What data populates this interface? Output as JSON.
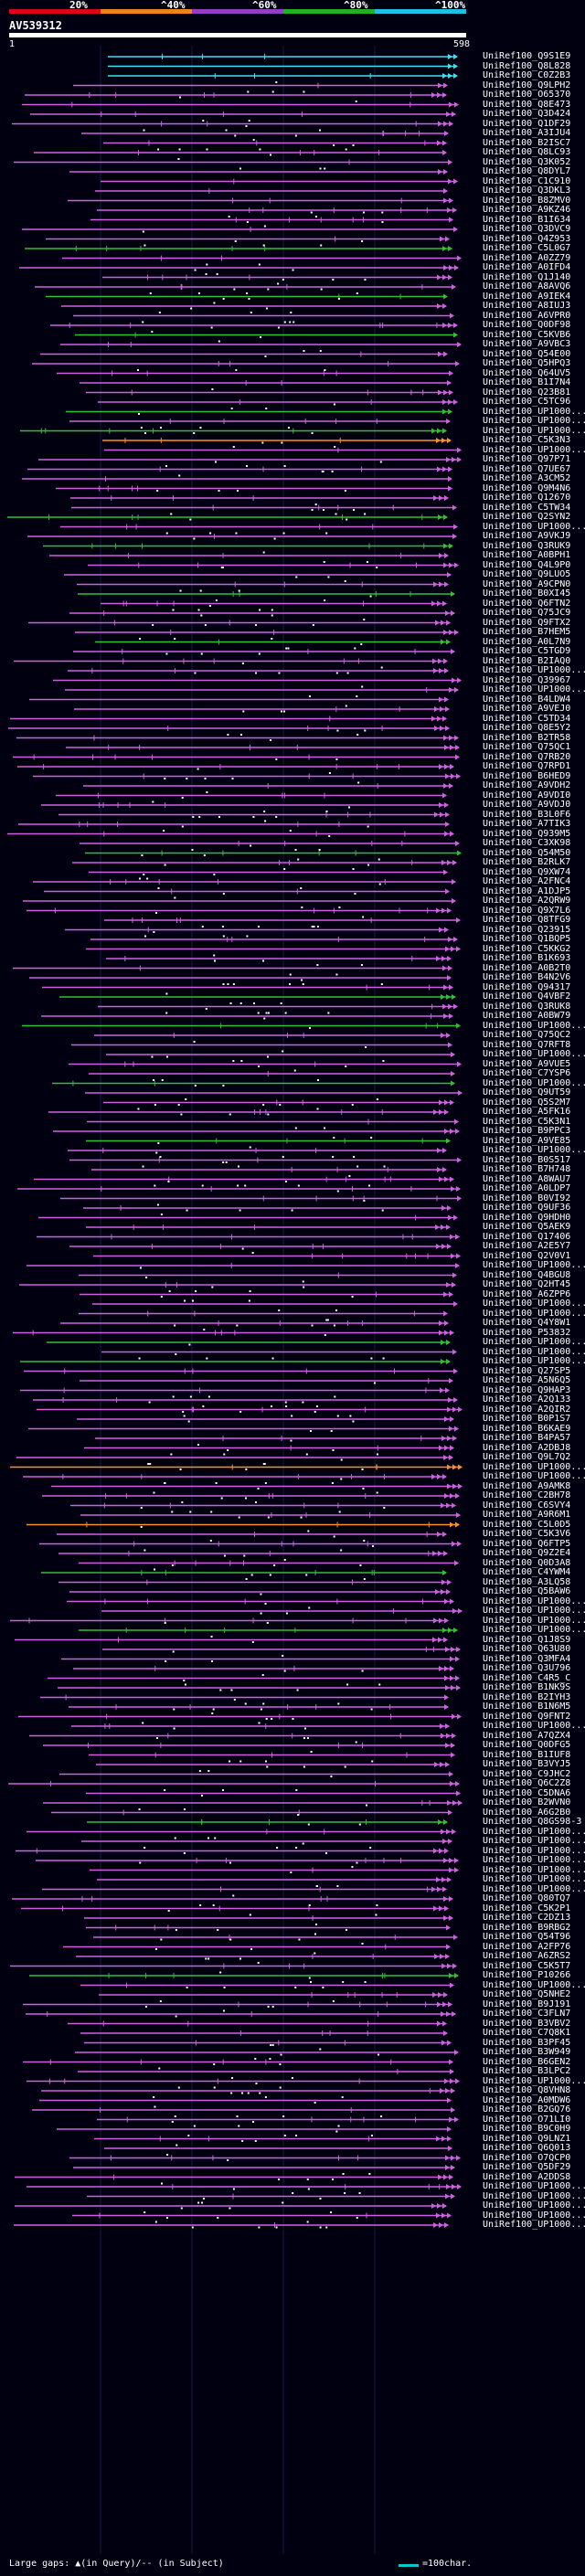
{
  "header": {
    "identity_scale": [
      {
        "label": "20%",
        "color": "#e0001c"
      },
      {
        "label": "^40%",
        "color": "#f08020"
      },
      {
        "label": "^60%",
        "color": "#9040c0"
      },
      {
        "label": "^80%",
        "color": "#20b020"
      },
      {
        "label": "^100%",
        "color": "#20c0e0"
      }
    ],
    "query_name": "AV539312",
    "query_start": "1",
    "query_end": "598"
  },
  "colors": {
    "background": "#000010",
    "cyan": "#40e0f0",
    "orange": "#ff9020",
    "magenta": "#d060e0",
    "green": "#30c030",
    "white": "#ffffff"
  },
  "hits": [
    {
      "name": "UniRef100_Q9S1E9",
      "color": "cyan"
    },
    {
      "name": "UniRef100_Q8L828",
      "color": "cyan"
    },
    {
      "name": "UniRef100_C0Z2B3",
      "color": "cyan"
    },
    {
      "name": "UniRef100_Q9LPH2",
      "color": "magenta"
    },
    {
      "name": "UniRef100_O65370",
      "color": "magenta"
    },
    {
      "name": "UniRef100_Q8E473",
      "color": "magenta"
    },
    {
      "name": "UniRef100_Q3D424",
      "color": "magenta"
    },
    {
      "name": "UniRef100_Q1DF29",
      "color": "magenta"
    },
    {
      "name": "UniRef100_A3IJU4",
      "color": "magenta"
    },
    {
      "name": "UniRef100_B2ISC7",
      "color": "magenta"
    },
    {
      "name": "UniRef100_Q8LC93",
      "color": "magenta"
    },
    {
      "name": "UniRef100_Q3K052",
      "color": "magenta"
    },
    {
      "name": "UniRef100_Q8DYL7",
      "color": "magenta"
    },
    {
      "name": "UniRef100_C1C910",
      "color": "magenta"
    },
    {
      "name": "UniRef100_Q3DKL3",
      "color": "magenta"
    },
    {
      "name": "UniRef100_B8ZMV0",
      "color": "magenta"
    },
    {
      "name": "UniRef100_A9KZ46",
      "color": "magenta"
    },
    {
      "name": "UniRef100_B1I634",
      "color": "magenta"
    },
    {
      "name": "UniRef100_Q3DVC9",
      "color": "magenta"
    },
    {
      "name": "UniRef100_Q4Z953",
      "color": "magenta"
    },
    {
      "name": "UniRef100_C5L0G7",
      "color": "green"
    },
    {
      "name": "UniRef100_A0ZZ79",
      "color": "magenta"
    },
    {
      "name": "UniRef100_A0IFD4",
      "color": "magenta"
    },
    {
      "name": "UniRef100_Q1J140",
      "color": "magenta"
    },
    {
      "name": "UniRef100_A8AVQ6",
      "color": "magenta"
    },
    {
      "name": "UniRef100_A9IEK4",
      "color": "green"
    },
    {
      "name": "UniRef100_A8IUJ3",
      "color": "magenta"
    },
    {
      "name": "UniRef100_A6VPR0",
      "color": "magenta"
    },
    {
      "name": "UniRef100_Q0DF98",
      "color": "magenta"
    },
    {
      "name": "UniRef100_C5KVB6",
      "color": "green"
    },
    {
      "name": "UniRef100_A9VBC3",
      "color": "magenta"
    },
    {
      "name": "UniRef100_Q54E00",
      "color": "magenta"
    },
    {
      "name": "UniRef100_Q5HPQ3",
      "color": "magenta"
    },
    {
      "name": "UniRef100_Q64UV5",
      "color": "magenta"
    },
    {
      "name": "UniRef100_B1I7N4",
      "color": "magenta"
    },
    {
      "name": "UniRef100_Q23B81",
      "color": "magenta"
    },
    {
      "name": "UniRef100_C5TC96",
      "color": "magenta"
    },
    {
      "name": "UniRef100_UP1000...",
      "color": "green"
    },
    {
      "name": "UniRef100_UP1000...",
      "color": "magenta"
    },
    {
      "name": "UniRef100_UP1000...",
      "color": "green"
    },
    {
      "name": "UniRef100_C5K3N3",
      "color": "orange"
    },
    {
      "name": "UniRef100_UP1000...",
      "color": "magenta"
    },
    {
      "name": "UniRef100_Q97P71",
      "color": "magenta"
    },
    {
      "name": "UniRef100_Q7UE67",
      "color": "magenta"
    },
    {
      "name": "UniRef100_A3CM52",
      "color": "magenta"
    },
    {
      "name": "UniRef100_Q9M4N6",
      "color": "magenta"
    },
    {
      "name": "UniRef100_Q12670",
      "color": "magenta"
    },
    {
      "name": "UniRef100_C5TW34",
      "color": "magenta"
    },
    {
      "name": "UniRef100_Q2SYN2",
      "color": "green"
    },
    {
      "name": "UniRef100_UP1000...",
      "color": "magenta"
    },
    {
      "name": "UniRef100_A9VKJ9",
      "color": "magenta"
    },
    {
      "name": "UniRef100_Q3RUK9",
      "color": "green"
    },
    {
      "name": "UniRef100_A0BPH1",
      "color": "magenta"
    },
    {
      "name": "UniRef100_Q4L9P0",
      "color": "magenta"
    },
    {
      "name": "UniRef100_Q9LUO5",
      "color": "magenta"
    },
    {
      "name": "UniRef100_A9CPN0",
      "color": "magenta"
    },
    {
      "name": "UniRef100_B0XI45",
      "color": "green"
    },
    {
      "name": "UniRef100_Q6FTN2",
      "color": "magenta"
    },
    {
      "name": "UniRef100_Q75JC9",
      "color": "magenta"
    },
    {
      "name": "UniRef100_Q9FTX2",
      "color": "magenta"
    },
    {
      "name": "UniRef100_B7HEM5",
      "color": "magenta"
    },
    {
      "name": "UniRef100_A0L7N9",
      "color": "green"
    },
    {
      "name": "UniRef100_C5TGD9",
      "color": "magenta"
    },
    {
      "name": "UniRef100_B2IAQ0",
      "color": "magenta"
    },
    {
      "name": "UniRef100_UP1000...",
      "color": "magenta"
    },
    {
      "name": "UniRef100_Q39967",
      "color": "magenta"
    },
    {
      "name": "UniRef100_UP1000...",
      "color": "magenta"
    },
    {
      "name": "UniRef100_B4LDW4",
      "color": "magenta"
    },
    {
      "name": "UniRef100_A9VEJ0",
      "color": "magenta"
    },
    {
      "name": "UniRef100_C5TD34",
      "color": "magenta"
    },
    {
      "name": "UniRef100_Q8E5Y2",
      "color": "magenta"
    },
    {
      "name": "UniRef100_B2TR58",
      "color": "magenta"
    },
    {
      "name": "UniRef100_Q75QC1",
      "color": "magenta"
    },
    {
      "name": "UniRef100_Q7RB20",
      "color": "magenta"
    },
    {
      "name": "UniRef100_Q7RPD1",
      "color": "magenta"
    },
    {
      "name": "UniRef100_B6HED9",
      "color": "magenta"
    },
    {
      "name": "UniRef100_A9VDH2",
      "color": "magenta"
    },
    {
      "name": "UniRef100_A9VDI0",
      "color": "magenta"
    },
    {
      "name": "UniRef100_A9VDJ0",
      "color": "magenta"
    },
    {
      "name": "UniRef100_B3L0F6",
      "color": "magenta"
    },
    {
      "name": "UniRef100_A7TIK3",
      "color": "magenta"
    },
    {
      "name": "UniRef100_Q939M5",
      "color": "magenta"
    },
    {
      "name": "UniRef100_C3XK98",
      "color": "magenta"
    },
    {
      "name": "UniRef100_Q54M50",
      "color": "green"
    },
    {
      "name": "UniRef100_B2RLK7",
      "color": "magenta"
    },
    {
      "name": "UniRef100_Q9XW74",
      "color": "magenta"
    },
    {
      "name": "UniRef100_A2FNC4",
      "color": "magenta"
    },
    {
      "name": "UniRef100_A1DJP5",
      "color": "magenta"
    },
    {
      "name": "UniRef100_A2QRW9",
      "color": "magenta"
    },
    {
      "name": "UniRef100_Q9X7L6",
      "color": "magenta"
    },
    {
      "name": "UniRef100_Q8TFG9",
      "color": "magenta"
    },
    {
      "name": "UniRef100_Q23915",
      "color": "magenta"
    },
    {
      "name": "UniRef100_Q1BQP5",
      "color": "magenta"
    },
    {
      "name": "UniRef100_C5KKG2",
      "color": "magenta"
    },
    {
      "name": "UniRef100_B1K693",
      "color": "magenta"
    },
    {
      "name": "UniRef100_A0B2T0",
      "color": "magenta"
    },
    {
      "name": "UniRef100_B4N2V6",
      "color": "magenta"
    },
    {
      "name": "UniRef100_Q94317",
      "color": "magenta"
    },
    {
      "name": "UniRef100_Q4VBF2",
      "color": "green"
    },
    {
      "name": "UniRef100_Q3RUK8",
      "color": "magenta"
    },
    {
      "name": "UniRef100_A0BW79",
      "color": "magenta"
    },
    {
      "name": "UniRef100_UP1000...",
      "color": "green"
    },
    {
      "name": "UniRef100_Q75QC2",
      "color": "magenta"
    },
    {
      "name": "UniRef100_Q7RFT8",
      "color": "magenta"
    },
    {
      "name": "UniRef100_UP1000...",
      "color": "magenta"
    },
    {
      "name": "UniRef100_A9VUE5",
      "color": "magenta"
    },
    {
      "name": "UniRef100_C7YSP6",
      "color": "magenta"
    },
    {
      "name": "UniRef100_UP1000...",
      "color": "green"
    },
    {
      "name": "UniRef100_Q9UT59",
      "color": "magenta"
    },
    {
      "name": "UniRef100_Q5S2M7",
      "color": "magenta"
    },
    {
      "name": "UniRef100_A5FK16",
      "color": "magenta"
    },
    {
      "name": "UniRef100_C5K3N1",
      "color": "magenta"
    },
    {
      "name": "UniRef100_B9PPC3",
      "color": "magenta"
    },
    {
      "name": "UniRef100_A9VE85",
      "color": "green"
    },
    {
      "name": "UniRef100_UP1000...",
      "color": "magenta"
    },
    {
      "name": "UniRef100_B0S517",
      "color": "magenta"
    },
    {
      "name": "UniRef100_B7H748",
      "color": "magenta"
    },
    {
      "name": "UniRef100_A8WAU7",
      "color": "magenta"
    },
    {
      "name": "UniRef100_A0LDP7",
      "color": "magenta"
    },
    {
      "name": "UniRef100_B0VI92",
      "color": "magenta"
    },
    {
      "name": "UniRef100_Q9UF36",
      "color": "magenta"
    },
    {
      "name": "UniRef100_Q9HDH0",
      "color": "magenta"
    },
    {
      "name": "UniRef100_Q5AEK9",
      "color": "magenta"
    },
    {
      "name": "UniRef100_Q17406",
      "color": "magenta"
    },
    {
      "name": "UniRef100_A2E5Y7",
      "color": "magenta"
    },
    {
      "name": "UniRef100_Q2V0V1",
      "color": "magenta"
    },
    {
      "name": "UniRef100_UP1000...",
      "color": "magenta"
    },
    {
      "name": "UniRef100_Q4BGU8",
      "color": "magenta"
    },
    {
      "name": "UniRef100_Q2HT45",
      "color": "magenta"
    },
    {
      "name": "UniRef100_A6ZPP6",
      "color": "magenta"
    },
    {
      "name": "UniRef100_UP1000...",
      "color": "magenta"
    },
    {
      "name": "UniRef100_UP1000...",
      "color": "magenta"
    },
    {
      "name": "UniRef100_Q4Y8W1",
      "color": "magenta"
    },
    {
      "name": "UniRef100_P53832",
      "color": "magenta"
    },
    {
      "name": "UniRef100_UP1000...",
      "color": "green"
    },
    {
      "name": "UniRef100_UP1000...",
      "color": "magenta"
    },
    {
      "name": "UniRef100_UP1000...",
      "color": "green"
    },
    {
      "name": "UniRef100_Q27SP5",
      "color": "magenta"
    },
    {
      "name": "UniRef100_A5N6Q5",
      "color": "magenta"
    },
    {
      "name": "UniRef100_Q9HAP3",
      "color": "magenta"
    },
    {
      "name": "UniRef100_A2Q133",
      "color": "magenta"
    },
    {
      "name": "UniRef100_A2QIR2",
      "color": "magenta"
    },
    {
      "name": "UniRef100_B0P1S7",
      "color": "magenta"
    },
    {
      "name": "UniRef100_B6KAE9",
      "color": "magenta"
    },
    {
      "name": "UniRef100_B4PA57",
      "color": "magenta"
    },
    {
      "name": "UniRef100_A2DBJ8",
      "color": "magenta"
    },
    {
      "name": "UniRef100_Q9L7Q2",
      "color": "magenta"
    },
    {
      "name": "UniRef100_UP1000...",
      "color": "orange"
    },
    {
      "name": "UniRef100_UP1000...",
      "color": "magenta"
    },
    {
      "name": "UniRef100_A9AMK8",
      "color": "magenta"
    },
    {
      "name": "UniRef100_C2BH78",
      "color": "magenta"
    },
    {
      "name": "UniRef100_C6SVY4",
      "color": "magenta"
    },
    {
      "name": "UniRef100_A9R6M1",
      "color": "magenta"
    },
    {
      "name": "UniRef100_C5L0D5",
      "color": "orange"
    },
    {
      "name": "UniRef100_C5K3V6",
      "color": "magenta"
    },
    {
      "name": "UniRef100_Q6FTP5",
      "color": "magenta"
    },
    {
      "name": "UniRef100_Q9Z2E4",
      "color": "magenta"
    },
    {
      "name": "UniRef100_Q0D3A8",
      "color": "magenta"
    },
    {
      "name": "UniRef100_C4YWM4",
      "color": "green"
    },
    {
      "name": "UniRef100_A3LQ58",
      "color": "magenta"
    },
    {
      "name": "UniRef100_Q5BAW6",
      "color": "magenta"
    },
    {
      "name": "UniRef100_UP1000...",
      "color": "magenta"
    },
    {
      "name": "UniRef100_UP1000...",
      "color": "magenta"
    },
    {
      "name": "UniRef100_UP1000...",
      "color": "magenta"
    },
    {
      "name": "UniRef100_UP1000...",
      "color": "green"
    },
    {
      "name": "UniRef100_Q1J8S9",
      "color": "magenta"
    },
    {
      "name": "UniRef100_Q63U80",
      "color": "magenta"
    },
    {
      "name": "UniRef100_Q3MFA4",
      "color": "magenta"
    },
    {
      "name": "UniRef100_Q3U796",
      "color": "magenta"
    },
    {
      "name": "UniRef100_C4R5_C",
      "color": "magenta"
    },
    {
      "name": "UniRef100_B1NK9S",
      "color": "magenta"
    },
    {
      "name": "UniRef100_B2IYH3",
      "color": "magenta"
    },
    {
      "name": "UniRef100_B1N6M5",
      "color": "magenta"
    },
    {
      "name": "UniRef100_Q9FNT2",
      "color": "magenta"
    },
    {
      "name": "UniRef100_UP1000...",
      "color": "magenta"
    },
    {
      "name": "UniRef100_A7QZX4",
      "color": "magenta"
    },
    {
      "name": "UniRef100_Q0DFG5",
      "color": "magenta"
    },
    {
      "name": "UniRef100_B1IUF8",
      "color": "magenta"
    },
    {
      "name": "UniRef100_B3VYJ5",
      "color": "magenta"
    },
    {
      "name": "UniRef100_C9JHC2",
      "color": "magenta"
    },
    {
      "name": "UniRef100_Q6C2Z8",
      "color": "magenta"
    },
    {
      "name": "UniRef100_C5DNA6",
      "color": "magenta"
    },
    {
      "name": "UniRef100_B2WVN0",
      "color": "magenta"
    },
    {
      "name": "UniRef100_A6G2B0",
      "color": "magenta"
    },
    {
      "name": "UniRef100_Q8GS98-3",
      "color": "green"
    },
    {
      "name": "UniRef100_UP1000...",
      "color": "magenta"
    },
    {
      "name": "UniRef100_UP1000...",
      "color": "magenta"
    },
    {
      "name": "UniRef100_UP1000...",
      "color": "magenta"
    },
    {
      "name": "UniRef100_UP1000...",
      "color": "magenta"
    },
    {
      "name": "UniRef100_UP1000...",
      "color": "magenta"
    },
    {
      "name": "UniRef100_UP1000...",
      "color": "magenta"
    },
    {
      "name": "UniRef100_UP1000...",
      "color": "magenta"
    },
    {
      "name": "UniRef100_Q80TQ7",
      "color": "magenta"
    },
    {
      "name": "UniRef100_C5K2P1",
      "color": "magenta"
    },
    {
      "name": "UniRef100_C2DZ13",
      "color": "magenta"
    },
    {
      "name": "UniRef100_B9RBG2",
      "color": "magenta"
    },
    {
      "name": "UniRef100_Q54T96",
      "color": "magenta"
    },
    {
      "name": "UniRef100_A2FP76",
      "color": "magenta"
    },
    {
      "name": "UniRef100_A6ZRS2",
      "color": "magenta"
    },
    {
      "name": "UniRef100_C5K5T7",
      "color": "magenta"
    },
    {
      "name": "UniRef100_P10266",
      "color": "green"
    },
    {
      "name": "UniRef100_UP1000...",
      "color": "magenta"
    },
    {
      "name": "UniRef100_Q5NHE2",
      "color": "magenta"
    },
    {
      "name": "UniRef100_B9J191",
      "color": "magenta"
    },
    {
      "name": "UniRef100_C3FLN7",
      "color": "magenta"
    },
    {
      "name": "UniRef100_B3VBV2",
      "color": "magenta"
    },
    {
      "name": "UniRef100_C7Q8K1",
      "color": "magenta"
    },
    {
      "name": "UniRef100_B3PF45",
      "color": "magenta"
    },
    {
      "name": "UniRef100_B3W949",
      "color": "magenta"
    },
    {
      "name": "UniRef100_B6GEN2",
      "color": "magenta"
    },
    {
      "name": "UniRef100_B3LPC2",
      "color": "magenta"
    },
    {
      "name": "UniRef100_UP1000...",
      "color": "magenta"
    },
    {
      "name": "UniRef100_Q8VHN8",
      "color": "magenta"
    },
    {
      "name": "UniRef100_A0MDW6",
      "color": "magenta"
    },
    {
      "name": "UniRef100_B2GQ76",
      "color": "magenta"
    },
    {
      "name": "UniRef100_O71LI0",
      "color": "magenta"
    },
    {
      "name": "UniRef100_B9C0H9",
      "color": "magenta"
    },
    {
      "name": "UniRef100_Q9LNZ1",
      "color": "magenta"
    },
    {
      "name": "UniRef100_Q6Q013",
      "color": "magenta"
    },
    {
      "name": "UniRef100_O7QCP0",
      "color": "magenta"
    },
    {
      "name": "UniRef100_Q5DF29",
      "color": "magenta"
    },
    {
      "name": "UniRef100_A2DDS8",
      "color": "magenta"
    },
    {
      "name": "UniRef100_UP1000...",
      "color": "magenta"
    },
    {
      "name": "UniRef100_UP1000...",
      "color": "magenta"
    },
    {
      "name": "UniRef100_UP1000...",
      "color": "magenta"
    },
    {
      "name": "UniRef100_UP1000...",
      "color": "magenta"
    },
    {
      "name": "UniRef100_UP1000...",
      "color": "magenta"
    }
  ],
  "footer": {
    "gaps_text": "Large gaps: ▲(in Query)/-- (in Subject)",
    "legend_text": "=100char."
  }
}
